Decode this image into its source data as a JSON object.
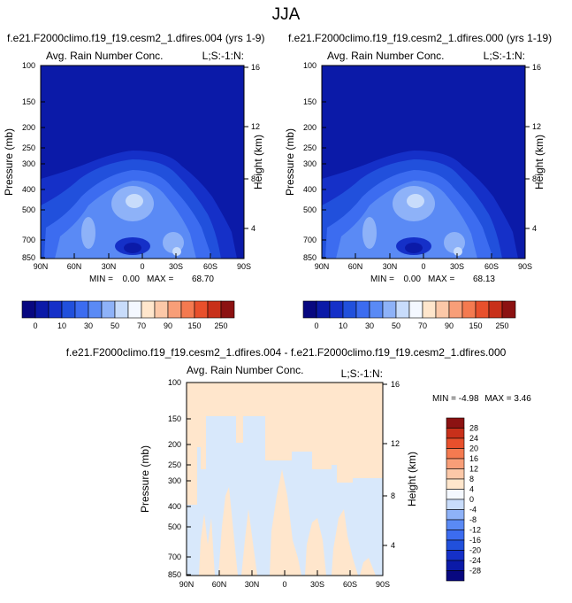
{
  "page_title": "JJA",
  "colors": {
    "abs_scale": [
      "#080880",
      "#0b1aa8",
      "#1530c8",
      "#2150dc",
      "#3c6cf0",
      "#5a8af5",
      "#8eb2f8",
      "#c8dcfb",
      "#f4f8ff",
      "#ffe6cc",
      "#fcc8a8",
      "#f89e78",
      "#f47a50",
      "#e8502c",
      "#c8301a",
      "#8c1212"
    ],
    "diff_scale": [
      "#8c1212",
      "#c8301a",
      "#e8502c",
      "#f47a50",
      "#f89e78",
      "#fcc8a8",
      "#ffe6cc",
      "#f4f8ff",
      "#c8dcfb",
      "#8eb2f8",
      "#5a8af5",
      "#3c6cf0",
      "#2150dc",
      "#1530c8",
      "#0b1aa8",
      "#080880"
    ]
  },
  "chart_data": [
    {
      "type": "heatmap",
      "id": "panel_a",
      "title": "f.e21.F2000climo.f19_f19.cesm2_1.dfires.004 (yrs 1-9)",
      "left_label": "Avg. Rain Number Conc.",
      "right_label": "L;S:-1:N:",
      "xlabel": "",
      "ylabel": "Pressure (mb)",
      "ylabel_right": "Height (km)",
      "x_ticks": [
        "90N",
        "60N",
        "30N",
        "0",
        "30S",
        "60S",
        "90S"
      ],
      "y_ticks": [
        "100",
        "150",
        "200",
        "250",
        "300",
        "400",
        "500",
        "700",
        "850"
      ],
      "y_right_ticks": [
        "16",
        "12",
        "8",
        "4"
      ],
      "stats": {
        "min_label": "MIN =",
        "min": "0.00",
        "max_label": "MAX =",
        "max": "68.70"
      },
      "colorbar_labels": [
        "0",
        "10",
        "30",
        "50",
        "70",
        "90",
        "150",
        "250"
      ]
    },
    {
      "type": "heatmap",
      "id": "panel_b",
      "title": "f.e21.F2000climo.f19_f19.cesm2_1.dfires.000 (yrs 1-19)",
      "left_label": "Avg. Rain Number Conc.",
      "right_label": "L;S:-1:N:",
      "xlabel": "",
      "ylabel": "Pressure (mb)",
      "ylabel_right": "Height (km)",
      "x_ticks": [
        "90N",
        "60N",
        "30N",
        "0",
        "30S",
        "60S",
        "90S"
      ],
      "y_ticks": [
        "100",
        "150",
        "200",
        "250",
        "300",
        "400",
        "500",
        "700",
        "850"
      ],
      "y_right_ticks": [
        "16",
        "12",
        "8",
        "4"
      ],
      "stats": {
        "min_label": "MIN =",
        "min": "0.00",
        "max_label": "MAX =",
        "max": "68.13"
      },
      "colorbar_labels": [
        "0",
        "10",
        "30",
        "50",
        "70",
        "90",
        "150",
        "250"
      ]
    },
    {
      "type": "heatmap",
      "id": "panel_diff",
      "title": "f.e21.F2000climo.f19_f19.cesm2_1.dfires.004 - f.e21.F2000climo.f19_f19.cesm2_1.dfires.000",
      "left_label": "Avg. Rain Number Conc.",
      "right_label": "L;S:-1:N:",
      "xlabel": "",
      "ylabel": "Pressure (mb)",
      "ylabel_right": "Height (km)",
      "x_ticks": [
        "90N",
        "60N",
        "30N",
        "0",
        "30S",
        "60S",
        "90S"
      ],
      "y_ticks": [
        "100",
        "150",
        "200",
        "250",
        "300",
        "400",
        "500",
        "700",
        "850"
      ],
      "y_right_ticks": [
        "16",
        "12",
        "8",
        "4"
      ],
      "stats": {
        "min_label": "MIN =",
        "min": "-4.98",
        "max_label": "MAX =",
        "max": "3.46"
      },
      "colorbar_labels": [
        "28",
        "24",
        "20",
        "16",
        "12",
        "8",
        "4",
        "0",
        "-4",
        "-8",
        "-12",
        "-16",
        "-20",
        "-24",
        "-28"
      ]
    }
  ]
}
